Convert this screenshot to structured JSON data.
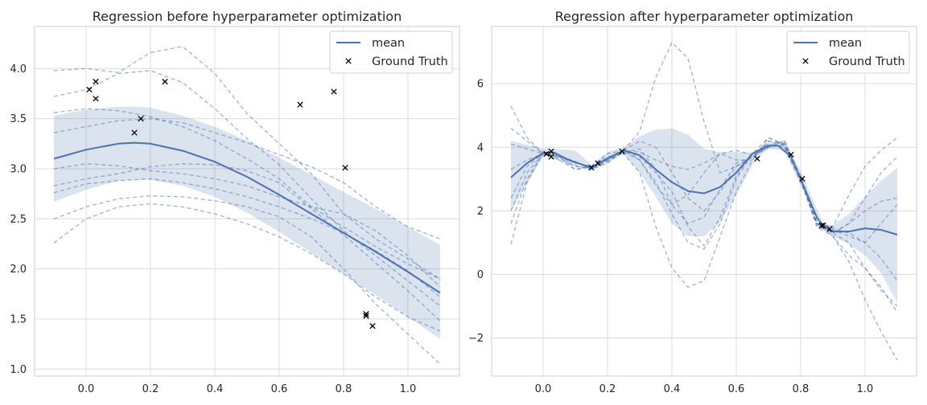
{
  "colors": {
    "mean": "#4c72b0",
    "band": "#4c72b0",
    "samples": "#4c72b0",
    "ground_truth": "#000000",
    "grid": "#dcdcdc",
    "spine": "#cccccc"
  },
  "chart_data": [
    {
      "type": "line",
      "title": "Regression before hyperparameter optimization",
      "xlim": [
        -0.16,
        1.16
      ],
      "ylim": [
        0.93,
        4.42
      ],
      "xticks": [
        0.0,
        0.2,
        0.4,
        0.6,
        0.8,
        1.0
      ],
      "xtick_labels": [
        "0.0",
        "0.2",
        "0.4",
        "0.6",
        "0.8",
        "1.0"
      ],
      "yticks": [
        1.0,
        1.5,
        2.0,
        2.5,
        3.0,
        3.5,
        4.0
      ],
      "ytick_labels": [
        "1.0",
        "1.5",
        "2.0",
        "2.5",
        "3.0",
        "3.5",
        "4.0"
      ],
      "grid": true,
      "legend": {
        "position": "top-right",
        "entries": [
          {
            "label": "mean",
            "marker": "line"
          },
          {
            "label": "Ground Truth",
            "marker": "x"
          }
        ]
      },
      "mean": {
        "x": [
          -0.1,
          0.0,
          0.1,
          0.15,
          0.2,
          0.3,
          0.4,
          0.5,
          0.6,
          0.7,
          0.8,
          0.9,
          1.0,
          1.1
        ],
        "y": [
          3.1,
          3.19,
          3.25,
          3.26,
          3.25,
          3.18,
          3.07,
          2.92,
          2.74,
          2.55,
          2.36,
          2.17,
          1.97,
          1.76
        ]
      },
      "band": {
        "x": [
          -0.1,
          0.0,
          0.1,
          0.15,
          0.2,
          0.3,
          0.4,
          0.5,
          0.6,
          0.7,
          0.8,
          0.9,
          1.0,
          1.1
        ],
        "lower": [
          2.67,
          2.79,
          2.88,
          2.89,
          2.89,
          2.83,
          2.72,
          2.56,
          2.37,
          2.16,
          1.95,
          1.74,
          1.52,
          1.3
        ],
        "upper": [
          3.53,
          3.59,
          3.62,
          3.62,
          3.61,
          3.53,
          3.42,
          3.28,
          3.11,
          2.94,
          2.77,
          2.6,
          2.42,
          2.24
        ]
      },
      "samples": {
        "x": [
          -0.1,
          0.0,
          0.1,
          0.2,
          0.3,
          0.4,
          0.5,
          0.6,
          0.7,
          0.8,
          0.9,
          1.0,
          1.1
        ],
        "series": [
          [
            3.98,
            4.0,
            3.96,
            4.16,
            4.22,
            3.95,
            3.55,
            3.25,
            2.95,
            2.55,
            2.3,
            2.1,
            1.9
          ],
          [
            3.72,
            3.79,
            3.95,
            3.98,
            3.86,
            3.6,
            3.3,
            3.04,
            2.7,
            2.38,
            2.13,
            1.88,
            1.63
          ],
          [
            3.56,
            3.6,
            3.58,
            3.52,
            3.42,
            3.28,
            3.1,
            2.9,
            2.62,
            2.42,
            2.22,
            2.05,
            1.9
          ],
          [
            3.36,
            3.42,
            3.48,
            3.5,
            3.46,
            3.36,
            3.26,
            3.14,
            3.02,
            2.86,
            2.62,
            2.42,
            2.3
          ],
          [
            3.0,
            3.05,
            3.03,
            2.98,
            2.95,
            2.9,
            2.83,
            2.72,
            2.62,
            2.55,
            2.38,
            2.13,
            1.82
          ],
          [
            2.83,
            2.9,
            2.95,
            3.02,
            3.05,
            3.04,
            2.98,
            2.86,
            2.6,
            2.34,
            2.06,
            1.78,
            1.48
          ],
          [
            2.76,
            2.85,
            2.88,
            2.9,
            2.86,
            2.8,
            2.72,
            2.62,
            2.5,
            2.36,
            2.18,
            1.98,
            1.72
          ],
          [
            2.5,
            2.62,
            2.7,
            2.73,
            2.72,
            2.68,
            2.62,
            2.52,
            2.32,
            2.0,
            1.65,
            1.35,
            1.05
          ],
          [
            2.26,
            2.5,
            2.62,
            2.65,
            2.62,
            2.55,
            2.45,
            2.32,
            2.15,
            1.95,
            1.72,
            1.52,
            1.38
          ]
        ]
      },
      "ground_truth": {
        "x": [
          0.01,
          0.03,
          0.03,
          0.15,
          0.17,
          0.245,
          0.665,
          0.77,
          0.805,
          0.87,
          0.87,
          0.89
        ],
        "y": [
          3.79,
          3.87,
          3.7,
          3.36,
          3.5,
          3.87,
          3.64,
          3.77,
          3.01,
          1.53,
          1.55,
          1.43
        ]
      }
    },
    {
      "type": "line",
      "title": "Regression after hyperparameter optimization",
      "xlim": [
        -0.16,
        1.16
      ],
      "ylim": [
        -3.2,
        7.8
      ],
      "xticks": [
        0.0,
        0.2,
        0.4,
        0.6,
        0.8,
        1.0
      ],
      "xtick_labels": [
        "0.0",
        "0.2",
        "0.4",
        "0.6",
        "0.8",
        "1.0"
      ],
      "yticks": [
        -2,
        0,
        2,
        4,
        6
      ],
      "ytick_labels": [
        "−2",
        "0",
        "2",
        "4",
        "6"
      ],
      "grid": true,
      "legend": {
        "position": "top-right",
        "entries": [
          {
            "label": "mean",
            "marker": "line"
          },
          {
            "label": "Ground Truth",
            "marker": "x"
          }
        ]
      },
      "mean": {
        "x": [
          -0.1,
          -0.05,
          0.0,
          0.03,
          0.08,
          0.15,
          0.2,
          0.25,
          0.3,
          0.35,
          0.4,
          0.45,
          0.5,
          0.55,
          0.6,
          0.65,
          0.7,
          0.73,
          0.77,
          0.8,
          0.85,
          0.87,
          0.9,
          0.95,
          1.0,
          1.05,
          1.1
        ],
        "y": [
          3.05,
          3.5,
          3.82,
          3.85,
          3.6,
          3.35,
          3.65,
          3.9,
          3.75,
          3.3,
          2.9,
          2.62,
          2.55,
          2.75,
          3.2,
          3.8,
          4.05,
          4.05,
          3.7,
          3.0,
          1.8,
          1.5,
          1.35,
          1.35,
          1.45,
          1.4,
          1.25
        ]
      },
      "band": {
        "x": [
          -0.1,
          0.0,
          0.03,
          0.1,
          0.15,
          0.2,
          0.25,
          0.3,
          0.35,
          0.4,
          0.45,
          0.5,
          0.55,
          0.6,
          0.66,
          0.7,
          0.75,
          0.8,
          0.87,
          0.9,
          0.95,
          1.0,
          1.05,
          1.1
        ],
        "lower": [
          2.0,
          3.7,
          3.75,
          3.55,
          3.3,
          3.5,
          3.8,
          3.2,
          2.45,
          1.6,
          1.2,
          1.2,
          1.65,
          2.5,
          3.6,
          3.95,
          3.9,
          2.8,
          1.45,
          1.2,
          0.95,
          0.6,
          0.05,
          -0.9
        ],
        "upper": [
          4.2,
          3.95,
          3.95,
          3.9,
          3.45,
          3.85,
          4.0,
          4.35,
          4.55,
          4.6,
          4.4,
          3.95,
          3.85,
          3.85,
          3.85,
          4.15,
          4.2,
          3.25,
          1.6,
          1.55,
          1.9,
          2.45,
          2.95,
          3.35
        ]
      },
      "samples": {
        "x": [
          -0.1,
          -0.05,
          0.0,
          0.05,
          0.1,
          0.15,
          0.2,
          0.25,
          0.3,
          0.35,
          0.4,
          0.45,
          0.5,
          0.55,
          0.6,
          0.65,
          0.7,
          0.75,
          0.8,
          0.85,
          0.9,
          0.95,
          1.0,
          1.05,
          1.1
        ],
        "series": [
          [
            5.3,
            4.3,
            3.8,
            3.7,
            3.5,
            3.4,
            3.6,
            3.9,
            4.5,
            6.2,
            7.3,
            6.8,
            4.8,
            3.2,
            3.4,
            3.7,
            4.0,
            4.2,
            3.1,
            1.7,
            1.4,
            1.2,
            1.0,
            1.6,
            2.2
          ],
          [
            0.95,
            2.9,
            3.85,
            3.6,
            3.3,
            3.4,
            3.7,
            3.8,
            3.2,
            1.5,
            0.2,
            -0.4,
            -0.2,
            1.2,
            2.6,
            3.6,
            4.3,
            4.1,
            3.0,
            1.6,
            1.5,
            2.5,
            3.4,
            3.9,
            4.3
          ],
          [
            4.6,
            4.2,
            3.8,
            3.6,
            3.4,
            3.3,
            3.5,
            3.9,
            4.2,
            4.0,
            3.2,
            2.4,
            2.0,
            2.6,
            3.4,
            3.7,
            4.0,
            4.2,
            3.0,
            1.5,
            1.2,
            0.6,
            0.2,
            -0.4,
            -1.2
          ],
          [
            1.6,
            3.0,
            3.8,
            3.7,
            3.3,
            3.4,
            3.8,
            3.9,
            3.6,
            2.8,
            2.2,
            2.5,
            3.2,
            3.8,
            3.6,
            3.6,
            4.2,
            4.0,
            2.9,
            1.6,
            1.2,
            0.4,
            -0.8,
            -1.8,
            -2.7
          ],
          [
            2.4,
            3.4,
            3.8,
            3.65,
            3.45,
            3.3,
            3.6,
            3.85,
            3.6,
            2.9,
            1.9,
            1.0,
            0.8,
            1.6,
            3.0,
            3.8,
            4.1,
            4.0,
            3.0,
            1.6,
            1.3,
            1.6,
            2.4,
            3.2,
            3.7
          ],
          [
            4.1,
            3.95,
            3.8,
            3.7,
            3.5,
            3.4,
            3.6,
            3.9,
            3.85,
            3.6,
            3.4,
            3.3,
            3.5,
            3.8,
            3.9,
            3.75,
            4.0,
            4.1,
            3.0,
            1.55,
            1.3,
            1.0,
            0.2,
            -0.5,
            -1.0
          ],
          [
            3.3,
            3.6,
            3.8,
            3.75,
            3.55,
            3.35,
            3.55,
            3.85,
            3.95,
            3.3,
            2.2,
            1.6,
            1.8,
            2.7,
            3.5,
            3.7,
            4.2,
            4.1,
            3.0,
            1.6,
            1.3,
            1.6,
            2.0,
            2.3,
            2.4
          ],
          [
            2.0,
            3.2,
            3.8,
            3.7,
            3.4,
            3.35,
            3.65,
            3.9,
            3.7,
            3.2,
            2.6,
            1.5,
            0.9,
            1.8,
            3.1,
            3.8,
            4.3,
            4.05,
            3.0,
            1.65,
            1.45,
            1.3,
            1.0,
            0.5,
            -0.2
          ]
        ]
      },
      "ground_truth": {
        "x": [
          0.01,
          0.025,
          0.025,
          0.15,
          0.17,
          0.245,
          0.665,
          0.77,
          0.805,
          0.865,
          0.87,
          0.89
        ],
        "y": [
          3.79,
          3.87,
          3.7,
          3.36,
          3.5,
          3.87,
          3.64,
          3.77,
          3.01,
          1.53,
          1.55,
          1.43
        ]
      }
    }
  ]
}
